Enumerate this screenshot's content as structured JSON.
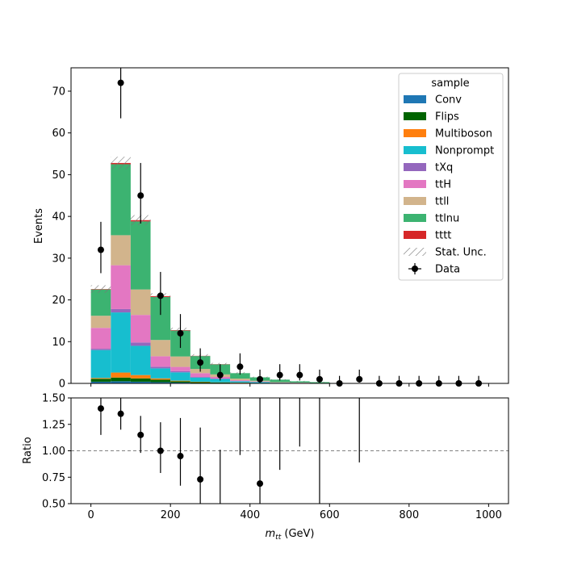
{
  "chart_data": [
    {
      "type": "bar",
      "subtype": "stacked-histogram-with-data-points",
      "ylabel": "Events",
      "xlim": [
        -50,
        1050
      ],
      "ylim": [
        0,
        75.6
      ],
      "xticks": [
        0,
        200,
        400,
        600,
        800,
        1000
      ],
      "yticks": [
        0,
        10,
        20,
        30,
        40,
        50,
        60,
        70
      ],
      "bin_width": 50,
      "bin_centers": [
        25,
        75,
        125,
        175,
        225,
        275,
        325,
        375,
        425,
        475,
        525,
        575,
        625,
        675,
        725,
        775,
        825,
        875,
        925,
        975
      ],
      "legend": {
        "title": "sample",
        "placement": "top-right"
      },
      "series": [
        {
          "name": "Conv",
          "color": "#1f77b4",
          "values": [
            0.4,
            0.5,
            0.4,
            0.3,
            0.2,
            0.1,
            0.1,
            0.05,
            0.05,
            0,
            0,
            0,
            0,
            0,
            0,
            0,
            0,
            0,
            0,
            0
          ]
        },
        {
          "name": "Flips",
          "color": "#006400",
          "values": [
            0.7,
            0.9,
            0.8,
            0.6,
            0.3,
            0.2,
            0.1,
            0.1,
            0.05,
            0.05,
            0,
            0,
            0,
            0,
            0,
            0,
            0,
            0,
            0,
            0
          ]
        },
        {
          "name": "Multiboson",
          "color": "#ff7f0e",
          "values": [
            0.2,
            1.2,
            0.8,
            0.3,
            0.15,
            0.1,
            0.05,
            0.05,
            0,
            0,
            0,
            0,
            0,
            0,
            0,
            0,
            0,
            0,
            0,
            0
          ]
        },
        {
          "name": "Nonprompt",
          "color": "#17becf",
          "values": [
            6.7,
            14.4,
            7.0,
            2.4,
            2.0,
            1.0,
            0.8,
            0.3,
            0.2,
            0.1,
            0.1,
            0.05,
            0,
            0,
            0,
            0,
            0,
            0,
            0,
            0
          ]
        },
        {
          "name": "tXq",
          "color": "#9467bd",
          "values": [
            0.3,
            0.8,
            0.8,
            0.4,
            0.3,
            0.15,
            0.1,
            0.05,
            0.05,
            0,
            0,
            0,
            0,
            0,
            0,
            0,
            0,
            0,
            0,
            0
          ]
        },
        {
          "name": "ttH",
          "color": "#e377c2",
          "values": [
            5.0,
            10.5,
            6.6,
            2.5,
            1.0,
            0.9,
            0.4,
            0.2,
            0.1,
            0.05,
            0.05,
            0,
            0,
            0,
            0,
            0,
            0,
            0,
            0,
            0
          ]
        },
        {
          "name": "ttll",
          "color": "#d2b48c",
          "values": [
            2.9,
            7.2,
            6.1,
            3.9,
            2.5,
            1.0,
            0.6,
            0.4,
            0.2,
            0.1,
            0.05,
            0.05,
            0,
            0,
            0,
            0,
            0,
            0,
            0,
            0
          ]
        },
        {
          "name": "ttlnu",
          "color": "#3cb371",
          "values": [
            6.3,
            17.0,
            16.3,
            10.3,
            6.2,
            3.1,
            2.4,
            1.3,
            0.8,
            0.6,
            0.3,
            0.2,
            0.1,
            0.05,
            0.05,
            0,
            0,
            0,
            0,
            0
          ]
        },
        {
          "name": "tttt",
          "color": "#d62728",
          "values": [
            0.1,
            0.3,
            0.3,
            0.2,
            0.1,
            0.05,
            0.05,
            0,
            0,
            0,
            0,
            0,
            0,
            0,
            0,
            0,
            0,
            0,
            0,
            0
          ]
        }
      ],
      "stat_unc": {
        "name": "Stat. Unc.",
        "half_width": [
          0.9,
          1.5,
          1.2,
          0.7,
          0.6,
          0.4,
          0.3,
          0.2,
          0.15,
          0.1,
          0.1,
          0.05,
          0.05,
          0.05,
          0.05,
          0,
          0,
          0,
          0,
          0
        ]
      },
      "data_points": {
        "name": "Data",
        "values": [
          32,
          72,
          45,
          21,
          12,
          5,
          2,
          4,
          1,
          2,
          2,
          1,
          0,
          1,
          0,
          0,
          0,
          0,
          0,
          0
        ],
        "err_up": [
          6.7,
          9.5,
          7.8,
          5.7,
          4.6,
          3.4,
          2.6,
          3.2,
          2.3,
          2.6,
          2.6,
          2.3,
          1.8,
          2.3,
          1.8,
          1.8,
          1.8,
          1.8,
          1.8,
          1.8
        ],
        "err_down": [
          5.6,
          8.5,
          6.7,
          4.6,
          3.5,
          2.2,
          1.3,
          1.9,
          0.8,
          1.3,
          1.3,
          0.8,
          0,
          0.8,
          0,
          0,
          0,
          0,
          0,
          0
        ]
      }
    },
    {
      "type": "scatter",
      "subtype": "ratio-panel",
      "xlabel": "m_tt (GeV)",
      "ylabel": "Ratio",
      "xlim": [
        -50,
        1050
      ],
      "ylim": [
        0.5,
        1.5
      ],
      "xticks": [
        0,
        200,
        400,
        600,
        800,
        1000
      ],
      "yticks": [
        0.5,
        0.75,
        1.0,
        1.25,
        1.5
      ],
      "reference_line": 1.0,
      "points": [
        {
          "x": 25,
          "y": 1.4,
          "lo": 1.15,
          "hi": 1.68
        },
        {
          "x": 75,
          "y": 1.35,
          "lo": 1.2,
          "hi": 1.52
        },
        {
          "x": 125,
          "y": 1.15,
          "lo": 0.98,
          "hi": 1.33
        },
        {
          "x": 175,
          "y": 1.0,
          "lo": 0.79,
          "hi": 1.27
        },
        {
          "x": 225,
          "y": 0.95,
          "lo": 0.67,
          "hi": 1.31
        },
        {
          "x": 275,
          "y": 0.73,
          "lo": 0.4,
          "hi": 1.22
        },
        {
          "x": 325,
          "y": null,
          "lo": 0.3,
          "hi": 1.01
        },
        {
          "x": 375,
          "y": null,
          "lo": 0.96,
          "hi": 3.0
        },
        {
          "x": 425,
          "y": 0.69,
          "lo": 0.14,
          "hi": 2.3
        },
        {
          "x": 475,
          "y": null,
          "lo": 0.82,
          "hi": 3.0
        },
        {
          "x": 525,
          "y": null,
          "lo": 1.04,
          "hi": 3.0
        },
        {
          "x": 575,
          "y": null,
          "lo": 0.0,
          "hi": 3.0
        },
        {
          "x": 675,
          "y": null,
          "lo": 0.89,
          "hi": 3.0
        }
      ]
    }
  ],
  "text": {
    "legend_title": "sample",
    "data_label": "Data",
    "stat_unc_label": "Stat. Unc.",
    "ylabel_top": "Events",
    "ylabel_bottom": "Ratio",
    "xlabel_main": "m",
    "xlabel_sub": "tt",
    "xlabel_unit": " (GeV)"
  }
}
